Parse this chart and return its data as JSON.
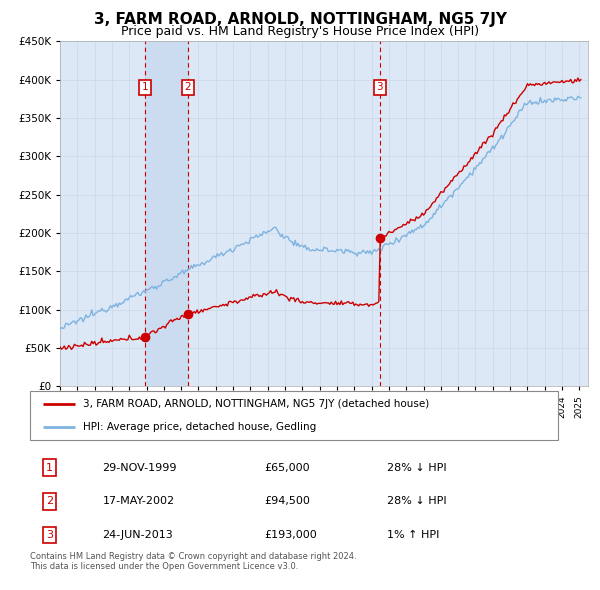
{
  "title": "3, FARM ROAD, ARNOLD, NOTTINGHAM, NG5 7JY",
  "subtitle": "Price paid vs. HM Land Registry's House Price Index (HPI)",
  "title_fontsize": 11,
  "subtitle_fontsize": 9,
  "legend_line1": "3, FARM ROAD, ARNOLD, NOTTINGHAM, NG5 7JY (detached house)",
  "legend_line2": "HPI: Average price, detached house, Gedling",
  "footer": "Contains HM Land Registry data © Crown copyright and database right 2024.\nThis data is licensed under the Open Government Licence v3.0.",
  "transactions": [
    {
      "num": 1,
      "date": "29-NOV-1999",
      "price": 65000,
      "hpi_diff": "28% ↓ HPI",
      "year": 1999.92
    },
    {
      "num": 2,
      "date": "17-MAY-2002",
      "price": 94500,
      "hpi_diff": "28% ↓ HPI",
      "year": 2002.38
    },
    {
      "num": 3,
      "date": "24-JUN-2013",
      "price": 193000,
      "hpi_diff": "1% ↑ HPI",
      "year": 2013.47
    }
  ],
  "hpi_color": "#7fb3e0",
  "price_color": "#cc0000",
  "vline_color": "#cc0000",
  "marker_box_color": "#cc0000",
  "background_color": "#dce8f5",
  "highlight_color": "#ccdcf0",
  "ylim": [
    0,
    450000
  ],
  "yticks": [
    0,
    50000,
    100000,
    150000,
    200000,
    250000,
    300000,
    350000,
    400000,
    450000
  ],
  "xlim_start": 1995.0,
  "xlim_end": 2025.5
}
